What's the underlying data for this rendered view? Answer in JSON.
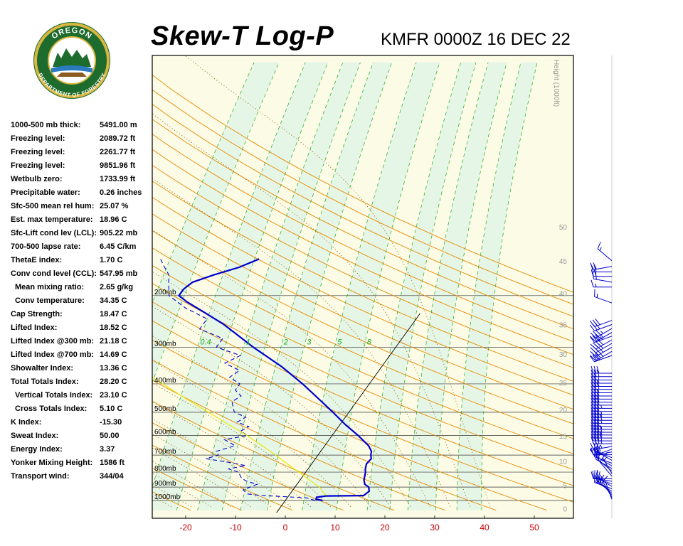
{
  "header": {
    "title": "Skew-T Log-P",
    "station": "KMFR 0000Z 16 DEC 22",
    "logo_text_top": "OREGON",
    "logo_text_bottom": "DEPARTMENT OF FORESTRY"
  },
  "indices": [
    {
      "label": "1000-500 mb thick:",
      "value": "5491.00 m",
      "indent": false
    },
    {
      "label": "Freezing level:",
      "value": "2089.72 ft",
      "indent": false
    },
    {
      "label": "Freezing level:",
      "value": "2261.77 ft",
      "indent": false
    },
    {
      "label": "Freezing level:",
      "value": "9851.96 ft",
      "indent": false
    },
    {
      "label": "Wetbulb zero:",
      "value": "1733.99 ft",
      "indent": false
    },
    {
      "label": "Precipitable water:",
      "value": "0.26 inches",
      "indent": false
    },
    {
      "label": "Sfc-500 mean rel hum:",
      "value": "25.07 %",
      "indent": false
    },
    {
      "label": "Est. max temperature:",
      "value": "18.96 C",
      "indent": false
    },
    {
      "label": "Sfc-Lift cond lev (LCL):",
      "value": "905.22 mb",
      "indent": false
    },
    {
      "label": "700-500 lapse rate:",
      "value": "6.45 C/km",
      "indent": false
    },
    {
      "label": "ThetaE index:",
      "value": "1.70 C",
      "indent": false
    },
    {
      "label": "Conv cond level (CCL):",
      "value": "547.95 mb",
      "indent": false
    },
    {
      "label": "Mean mixing ratio:",
      "value": "2.65 g/kg",
      "indent": true
    },
    {
      "label": "Conv temperature:",
      "value": "34.35 C",
      "indent": true
    },
    {
      "label": "Cap Strength:",
      "value": "18.47 C",
      "indent": false
    },
    {
      "label": "Lifted Index:",
      "value": "18.52 C",
      "indent": false
    },
    {
      "label": "Lifted Index @300 mb:",
      "value": "21.18 C",
      "indent": false
    },
    {
      "label": "Lifted Index @700 mb:",
      "value": "14.69 C",
      "indent": false
    },
    {
      "label": "Showalter Index:",
      "value": "13.36 C",
      "indent": false
    },
    {
      "label": "Total Totals Index:",
      "value": "28.20 C",
      "indent": false
    },
    {
      "label": "Vertical Totals Index:",
      "value": "23.10 C",
      "indent": true
    },
    {
      "label": "Cross Totals Index:",
      "value": "5.10 C",
      "indent": true
    },
    {
      "label": "K Index:",
      "value": "-15.30",
      "indent": false
    },
    {
      "label": "Sweat Index:",
      "value": "50.00",
      "indent": false
    },
    {
      "label": "Energy Index:",
      "value": "3.37",
      "indent": false
    },
    {
      "label": "Yonker Mixing Height:",
      "value": "1586 ft",
      "indent": false
    },
    {
      "label": "Transport wind:",
      "value": "344/04",
      "indent": false
    }
  ],
  "chart_data": {
    "type": "line",
    "title": "Skew-T Log-P",
    "xlabel": "",
    "ylabel": "",
    "x_ticks": [
      "-20",
      "-10",
      "0",
      "10",
      "20",
      "30",
      "40",
      "50"
    ],
    "pressure_labels": [
      "1000mb",
      "900mb",
      "800mb",
      "700mb",
      "600mb",
      "500mb",
      "400mb",
      "300mb",
      "200mb"
    ],
    "height_axis_title": "Height (1000ft)",
    "height_labels": [
      "0",
      "5",
      "10",
      "15",
      "20",
      "25",
      "30",
      "35",
      "40",
      "45",
      "50"
    ],
    "mixing_ratio_labels": [
      "0.4",
      "1",
      "2",
      "3",
      "5",
      "8"
    ],
    "colors": {
      "temperature": "#0000cc",
      "dewpoint": "#0000cc",
      "parcel": "#e8e800",
      "dry_adiabat": "#e88a00",
      "moist_adiabat": "#8a6000",
      "mixing_ratio": "#22aa22",
      "isobar": "#333333",
      "tick_label": "#cc0000",
      "band_green": "#e6f6e6",
      "band_yellow": "#fbfbe6",
      "wind_barb": "#0000cc"
    },
    "series": [
      {
        "kind": "temperature",
        "line": "solid",
        "points": [
          [
            1000,
            7.5
          ],
          [
            990,
            6.0
          ],
          [
            975,
            5.8
          ],
          [
            965,
            7.5
          ],
          [
            962,
            15.0
          ],
          [
            950,
            15.2
          ],
          [
            930,
            15.5
          ],
          [
            900,
            14.8
          ],
          [
            880,
            13.6
          ],
          [
            850,
            12.8
          ],
          [
            830,
            12.5
          ],
          [
            800,
            12.0
          ],
          [
            780,
            11.5
          ],
          [
            750,
            11.0
          ],
          [
            720,
            11.2
          ],
          [
            700,
            10.6
          ],
          [
            680,
            10.2
          ],
          [
            650,
            8.8
          ],
          [
            600,
            5.2
          ],
          [
            550,
            1.0
          ],
          [
            500,
            -3.2
          ],
          [
            450,
            -8.0
          ],
          [
            400,
            -13.4
          ],
          [
            350,
            -20.0
          ],
          [
            300,
            -28.6
          ],
          [
            270,
            -34.0
          ],
          [
            250,
            -38.0
          ],
          [
            230,
            -43.0
          ],
          [
            210,
            -48.5
          ],
          [
            200,
            -51.0
          ],
          [
            190,
            -51.0
          ],
          [
            180,
            -50.2
          ],
          [
            170,
            -47.0
          ],
          [
            160,
            -43.0
          ],
          [
            150,
            -40.2
          ]
        ]
      },
      {
        "kind": "dewpoint",
        "line": "dashed",
        "points": [
          [
            1000,
            6.0
          ],
          [
            980,
            4.0
          ],
          [
            970,
            -1.0
          ],
          [
            960,
            -6.0
          ],
          [
            950,
            -8.5
          ],
          [
            920,
            -10.0
          ],
          [
            880,
            -8.0
          ],
          [
            860,
            -10.5
          ],
          [
            840,
            -12.0
          ],
          [
            800,
            -13.5
          ],
          [
            780,
            -16.0
          ],
          [
            760,
            -13.0
          ],
          [
            740,
            -17.0
          ],
          [
            720,
            -22.0
          ],
          [
            700,
            -20.0
          ],
          [
            680,
            -21.0
          ],
          [
            650,
            -18.0
          ],
          [
            620,
            -21.0
          ],
          [
            600,
            -17.0
          ],
          [
            580,
            -19.0
          ],
          [
            560,
            -18.0
          ],
          [
            540,
            -21.0
          ],
          [
            520,
            -20.0
          ],
          [
            500,
            -23.0
          ],
          [
            480,
            -24.0
          ],
          [
            460,
            -25.0
          ],
          [
            440,
            -24.0
          ],
          [
            420,
            -26.0
          ],
          [
            400,
            -26.0
          ],
          [
            380,
            -29.0
          ],
          [
            360,
            -28.0
          ],
          [
            340,
            -32.0
          ],
          [
            320,
            -30.0
          ],
          [
            300,
            -36.0
          ],
          [
            280,
            -36.0
          ],
          [
            260,
            -42.0
          ],
          [
            240,
            -42.0
          ],
          [
            220,
            -48.0
          ],
          [
            200,
            -53.0
          ],
          [
            180,
            -55.0
          ],
          [
            170,
            -56.0
          ],
          [
            160,
            -58.0
          ],
          [
            150,
            -60.0
          ]
        ]
      },
      {
        "kind": "parcel",
        "line": "solid",
        "points": [
          [
            960,
            7.5
          ],
          [
            940,
            6.5
          ],
          [
            905,
            5.2
          ],
          [
            850,
            1.8
          ],
          [
            800,
            -1.4
          ],
          [
            750,
            -4.9
          ],
          [
            700,
            -8.5
          ],
          [
            650,
            -12.6
          ],
          [
            600,
            -17.1
          ],
          [
            550,
            -22.4
          ],
          [
            500,
            -28.2
          ],
          [
            450,
            -34.6
          ],
          [
            400,
            -41.5
          ],
          [
            350,
            -49.3
          ],
          [
            310,
            -57.0
          ]
        ]
      }
    ],
    "wind_barbs_knots": [
      {
        "p": 990,
        "dir": 340,
        "spd": 4
      },
      {
        "p": 975,
        "dir": 330,
        "spd": 10
      },
      {
        "p": 960,
        "dir": 320,
        "spd": 15
      },
      {
        "p": 945,
        "dir": 310,
        "spd": 20
      },
      {
        "p": 930,
        "dir": 300,
        "spd": 20
      },
      {
        "p": 912,
        "dir": 290,
        "spd": 25
      },
      {
        "p": 895,
        "dir": 300,
        "spd": 25
      },
      {
        "p": 878,
        "dir": 290,
        "spd": 20
      },
      {
        "p": 860,
        "dir": 280,
        "spd": 15
      },
      {
        "p": 843,
        "dir": 270,
        "spd": 10
      },
      {
        "p": 826,
        "dir": 320,
        "spd": 10
      },
      {
        "p": 810,
        "dir": 330,
        "spd": 15
      },
      {
        "p": 794,
        "dir": 310,
        "spd": 10
      },
      {
        "p": 778,
        "dir": 300,
        "spd": 15
      },
      {
        "p": 762,
        "dir": 300,
        "spd": 20
      },
      {
        "p": 746,
        "dir": 290,
        "spd": 15
      },
      {
        "p": 730,
        "dir": 300,
        "spd": 20
      },
      {
        "p": 714,
        "dir": 290,
        "spd": 25
      },
      {
        "p": 698,
        "dir": 270,
        "spd": 30
      },
      {
        "p": 683,
        "dir": 260,
        "spd": 25
      },
      {
        "p": 668,
        "dir": 250,
        "spd": 30
      },
      {
        "p": 654,
        "dir": 260,
        "spd": 35
      },
      {
        "p": 640,
        "dir": 270,
        "spd": 35
      },
      {
        "p": 626,
        "dir": 270,
        "spd": 40
      },
      {
        "p": 612,
        "dir": 270,
        "spd": 40
      },
      {
        "p": 598,
        "dir": 270,
        "spd": 35
      },
      {
        "p": 585,
        "dir": 270,
        "spd": 40
      },
      {
        "p": 572,
        "dir": 270,
        "spd": 35
      },
      {
        "p": 559,
        "dir": 270,
        "spd": 30
      },
      {
        "p": 546,
        "dir": 270,
        "spd": 35
      },
      {
        "p": 533,
        "dir": 270,
        "spd": 40
      },
      {
        "p": 521,
        "dir": 270,
        "spd": 35
      },
      {
        "p": 509,
        "dir": 270,
        "spd": 35
      },
      {
        "p": 497,
        "dir": 270,
        "spd": 30
      },
      {
        "p": 485,
        "dir": 270,
        "spd": 35
      },
      {
        "p": 473,
        "dir": 270,
        "spd": 30
      },
      {
        "p": 462,
        "dir": 270,
        "spd": 30
      },
      {
        "p": 451,
        "dir": 270,
        "spd": 30
      },
      {
        "p": 440,
        "dir": 270,
        "spd": 30
      },
      {
        "p": 429,
        "dir": 270,
        "spd": 25
      },
      {
        "p": 418,
        "dir": 270,
        "spd": 30
      },
      {
        "p": 408,
        "dir": 270,
        "spd": 30
      },
      {
        "p": 398,
        "dir": 270,
        "spd": 25
      },
      {
        "p": 388,
        "dir": 270,
        "spd": 25
      },
      {
        "p": 378,
        "dir": 270,
        "spd": 30
      },
      {
        "p": 368,
        "dir": 270,
        "spd": 30
      },
      {
        "p": 320,
        "dir": 250,
        "spd": 30
      },
      {
        "p": 310,
        "dir": 240,
        "spd": 35
      },
      {
        "p": 300,
        "dir": 240,
        "spd": 35
      },
      {
        "p": 291,
        "dir": 240,
        "spd": 40
      },
      {
        "p": 283,
        "dir": 240,
        "spd": 40
      },
      {
        "p": 275,
        "dir": 250,
        "spd": 35
      },
      {
        "p": 267,
        "dir": 240,
        "spd": 40
      },
      {
        "p": 259,
        "dir": 240,
        "spd": 35
      },
      {
        "p": 251,
        "dir": 250,
        "spd": 30
      },
      {
        "p": 243,
        "dir": 250,
        "spd": 30
      },
      {
        "p": 212,
        "dir": 290,
        "spd": 15
      },
      {
        "p": 187,
        "dir": 270,
        "spd": 15
      },
      {
        "p": 180,
        "dir": 280,
        "spd": 20
      },
      {
        "p": 172,
        "dir": 270,
        "spd": 20
      },
      {
        "p": 166,
        "dir": 270,
        "spd": 20
      },
      {
        "p": 159,
        "dir": 260,
        "spd": 20
      },
      {
        "p": 152,
        "dir": 310,
        "spd": 15
      }
    ]
  }
}
